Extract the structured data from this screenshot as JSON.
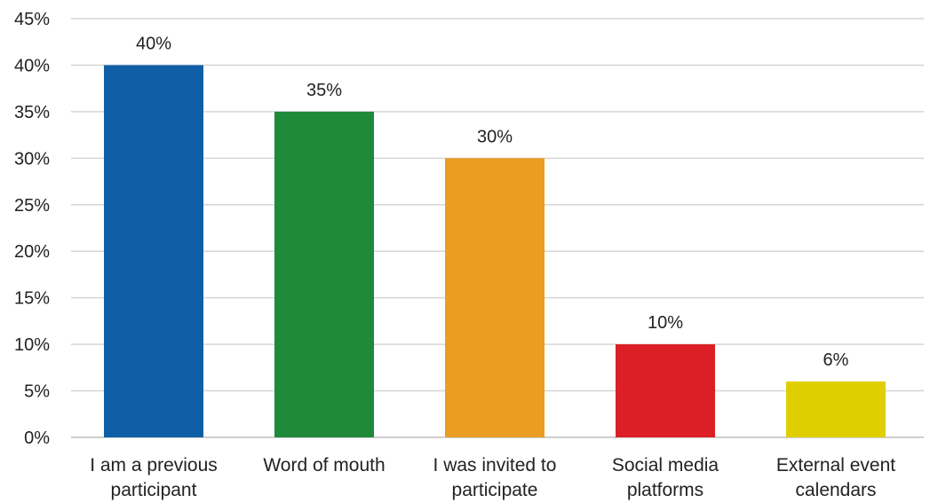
{
  "chart_data": {
    "type": "bar",
    "title": "",
    "xlabel": "",
    "ylabel": "",
    "categories": [
      [
        "I am a previous",
        "participant"
      ],
      [
        "Word of mouth"
      ],
      [
        "I was invited to",
        "participate"
      ],
      [
        "Social media",
        "platforms"
      ],
      [
        "External event",
        "calendars"
      ]
    ],
    "values": [
      40,
      35,
      30,
      10,
      6
    ],
    "data_labels": [
      "40%",
      "35%",
      "30%",
      "10%",
      "6%"
    ],
    "colors": [
      "#0e5fa6",
      "#1e8a3a",
      "#eb9c22",
      "#dc1f26",
      "#e0cf00"
    ],
    "ylim": [
      0,
      45
    ],
    "yticks": [
      0,
      5,
      10,
      15,
      20,
      25,
      30,
      35,
      40,
      45
    ],
    "ytick_labels": [
      "0%",
      "5%",
      "10%",
      "15%",
      "20%",
      "25%",
      "30%",
      "35%",
      "40%",
      "45%"
    ],
    "grid": true,
    "legend": "none"
  }
}
